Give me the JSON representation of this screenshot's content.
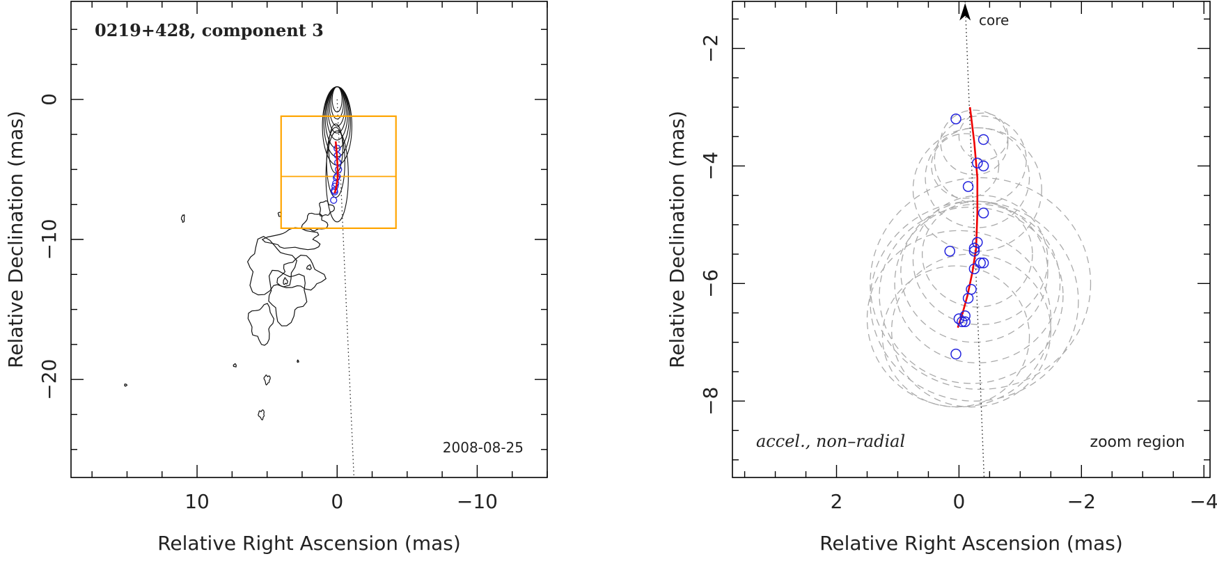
{
  "chart_data": [
    {
      "type": "contour",
      "annotation_title": "0219+428, component 3",
      "date_label": "2008-08-25",
      "xlabel": "Relative Right Ascension (mas)",
      "ylabel": "Relative Declination (mas)",
      "xlim": [
        19,
        -15
      ],
      "ylim": [
        -27,
        7
      ],
      "xticks": [
        10,
        0,
        -10
      ],
      "xtick_labels": [
        "10",
        "0",
        "−10"
      ],
      "yticks": [
        0,
        -10,
        -20
      ],
      "ytick_labels": [
        "0",
        "−10",
        "−20"
      ],
      "core_contours": [
        [
          0.35,
          0.9
        ],
        [
          0.45,
          1.15
        ],
        [
          0.55,
          1.4
        ],
        [
          0.65,
          1.65
        ],
        [
          0.75,
          1.9
        ],
        [
          0.85,
          2.2
        ],
        [
          0.95,
          2.5
        ],
        [
          1.05,
          2.8
        ]
      ],
      "jet_contours": [
        [
          0.1,
          -3.5,
          1.0,
          3.5
        ],
        [
          0.1,
          -4.5,
          1.3,
          5.0
        ],
        [
          0.0,
          -5.5,
          1.6,
          6.5
        ]
      ],
      "extended_blobs": [
        [
          2.6,
          -12.5,
          3.0,
          2.2
        ],
        [
          4.8,
          -12.0,
          3.2,
          3.6
        ],
        [
          3.6,
          -14.0,
          2.6,
          3.6
        ],
        [
          5.4,
          -16.0,
          1.6,
          2.6
        ],
        [
          3.0,
          -10.0,
          3.6,
          1.4
        ],
        [
          1.6,
          -8.8,
          1.6,
          1.2
        ],
        [
          0.8,
          -7.8,
          1.0,
          1.0
        ],
        [
          5.0,
          -20.0,
          0.4,
          0.6
        ],
        [
          5.4,
          -22.5,
          0.4,
          0.6
        ],
        [
          7.3,
          -19.0,
          0.2,
          0.2
        ],
        [
          2.8,
          -18.7,
          0.1,
          0.15
        ],
        [
          15.1,
          -20.4,
          0.15,
          0.15
        ],
        [
          4.1,
          -8.2,
          0.2,
          0.3
        ],
        [
          11.0,
          -8.5,
          0.2,
          0.5
        ],
        [
          2.0,
          -12.0,
          0.3,
          0.3
        ],
        [
          3.7,
          -13.0,
          0.3,
          0.4
        ]
      ],
      "trajectory": {
        "x": [
          0.1,
          0.05,
          0.0,
          -0.03,
          -0.05,
          -0.02,
          0.05,
          0.12,
          0.18
        ],
        "y": [
          -3.0,
          -3.6,
          -4.2,
          -4.8,
          -5.4,
          -5.8,
          -6.2,
          -6.5,
          -6.7
        ],
        "color": "#ee0000"
      },
      "component_positions": {
        "x": [
          0.0,
          -0.02,
          -0.05,
          -0.1,
          0.0,
          0.05,
          0.1,
          0.15,
          0.2,
          0.18,
          0.25
        ],
        "y": [
          -3.5,
          -4.0,
          -4.5,
          -5.0,
          -5.5,
          -5.6,
          -6.0,
          -6.2,
          -6.5,
          -6.6,
          -7.2
        ],
        "color": "#2222dd"
      },
      "ridge_line": {
        "x": [
          0,
          -1.2
        ],
        "y": [
          0,
          -27
        ]
      },
      "zoom_box": {
        "x": [
          4.0,
          -4.2
        ],
        "y": [
          -1.2,
          -9.2
        ],
        "divider_y": -5.5,
        "color": "#ffa500"
      }
    },
    {
      "type": "scatter",
      "annotation_text": "accel., non–radial",
      "core_label": "core",
      "corner_label": "zoom region",
      "xlabel": "Relative Right Ascension (mas)",
      "ylabel": "Relative Declination (mas)",
      "xlim": [
        3.7,
        -4.1
      ],
      "ylim": [
        -9.3,
        -1.2
      ],
      "xticks": [
        2,
        0,
        -2,
        -4
      ],
      "xtick_labels": [
        "2",
        "0",
        "−2",
        "−4"
      ],
      "yticks": [
        -2,
        -4,
        -6,
        -8
      ],
      "ytick_labels": [
        "−2",
        "−4",
        "−6",
        "−8"
      ],
      "points": {
        "x": [
          0.05,
          -0.4,
          -0.3,
          -0.4,
          -0.15,
          -0.4,
          -0.3,
          -0.25,
          -0.25,
          0.15,
          -0.4,
          -0.35,
          -0.25,
          -0.2,
          -0.15,
          -0.1,
          0.0,
          -0.05,
          -0.1,
          0.05
        ],
        "y": [
          -3.2,
          -3.55,
          -3.95,
          -4.0,
          -4.35,
          -4.8,
          -5.3,
          -5.4,
          -5.45,
          -5.45,
          -5.65,
          -5.65,
          -5.75,
          -6.1,
          -6.25,
          -6.55,
          -6.6,
          -6.65,
          -6.65,
          -7.2
        ],
        "color": "#2222dd"
      },
      "trajectory": {
        "x": [
          -0.18,
          -0.25,
          -0.3,
          -0.3,
          -0.28,
          -0.22,
          -0.14,
          -0.06,
          0.02
        ],
        "y": [
          -3.0,
          -3.6,
          -4.2,
          -4.8,
          -5.4,
          -5.8,
          -6.2,
          -6.5,
          -6.75
        ],
        "color": "#ee0000"
      },
      "ridge_line": {
        "x": [
          -0.1,
          -0.41
        ],
        "y": [
          -1.2,
          -9.3
        ]
      },
      "uncertainty_circles": [
        [
          -0.25,
          -3.6,
          0.55
        ],
        [
          -0.35,
          -3.9,
          0.75
        ],
        [
          -0.3,
          -4.2,
          0.85
        ],
        [
          -0.3,
          -4.4,
          1.05
        ],
        [
          -0.1,
          -4.0,
          0.55
        ],
        [
          -0.4,
          -3.5,
          0.4
        ],
        [
          -0.25,
          -5.8,
          1.2
        ],
        [
          -0.3,
          -6.0,
          1.35
        ],
        [
          -0.2,
          -6.2,
          1.5
        ],
        [
          -0.35,
          -5.6,
          1.1
        ],
        [
          0.0,
          -6.6,
          1.5
        ],
        [
          -0.25,
          -6.3,
          1.7
        ],
        [
          -0.3,
          -5.5,
          0.9
        ],
        [
          -0.35,
          -6.0,
          1.8
        ],
        [
          -0.2,
          -6.8,
          1.3
        ],
        [
          0.05,
          -6.9,
          1.2
        ]
      ]
    }
  ]
}
